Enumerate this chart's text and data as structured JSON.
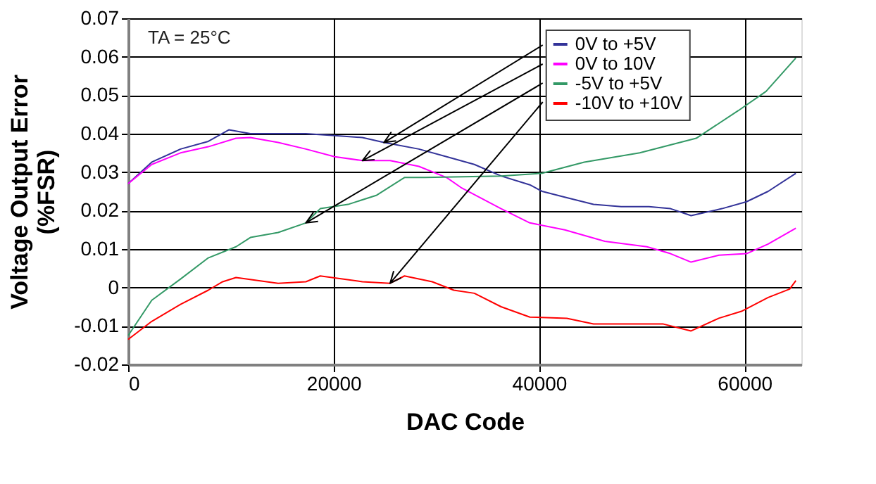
{
  "chart_data": {
    "type": "line",
    "xlabel": "DAC Code",
    "ylabel": "Voltage Output Error\n(%FSR)",
    "xlim": [
      0,
      65535
    ],
    "ylim": [
      -0.02,
      0.07
    ],
    "xticks": [
      0,
      20000,
      40000,
      60000
    ],
    "yticks": [
      -0.02,
      -0.01,
      0,
      0.01,
      0.02,
      0.03,
      0.04,
      0.05,
      0.06,
      0.07
    ],
    "grid": true,
    "legend": "top right",
    "marker": "none",
    "line_style": "solid",
    "annotations": [
      "TA = 25°C"
    ],
    "series": [
      {
        "name": "0V to +5V",
        "color": "#333399",
        "x": [
          0,
          2300,
          5100,
          7800,
          9800,
          11900,
          14600,
          17300,
          20100,
          22800,
          24900,
          28300,
          31000,
          33700,
          36300,
          39100,
          40300,
          42500,
          45300,
          48000,
          50700,
          52800,
          54800,
          57800,
          60200,
          62300,
          65000
        ],
        "values": [
          0.027,
          0.0326,
          0.036,
          0.038,
          0.041,
          0.04,
          0.04,
          0.04,
          0.0395,
          0.039,
          0.0377,
          0.036,
          0.034,
          0.032,
          0.029,
          0.0267,
          0.025,
          0.0235,
          0.0216,
          0.021,
          0.021,
          0.0205,
          0.0187,
          0.0205,
          0.0223,
          0.025,
          0.0297
        ]
      },
      {
        "name": "0V to 10V",
        "color": "#ff00ff",
        "x": [
          0,
          2300,
          5100,
          7800,
          10500,
          11900,
          14600,
          17300,
          20100,
          22800,
          25500,
          28300,
          31000,
          32400,
          36300,
          39100,
          42500,
          46400,
          50500,
          52800,
          54800,
          57500,
          60200,
          62300,
          65000
        ],
        "values": [
          0.027,
          0.032,
          0.035,
          0.0366,
          0.0388,
          0.039,
          0.0377,
          0.036,
          0.034,
          0.033,
          0.033,
          0.0315,
          0.0286,
          0.026,
          0.0205,
          0.0168,
          0.015,
          0.012,
          0.0106,
          0.0088,
          0.0066,
          0.0084,
          0.0088,
          0.0113,
          0.0154
        ]
      },
      {
        "name": "-5V to +5V",
        "color": "#339966",
        "x": [
          0,
          2300,
          5100,
          7800,
          10500,
          11900,
          14600,
          17300,
          18700,
          21400,
          24200,
          26900,
          28900,
          36300,
          40300,
          44400,
          49800,
          55300,
          59400,
          62100,
          65000
        ],
        "values": [
          -0.0125,
          -0.0033,
          0.0022,
          0.0077,
          0.0106,
          0.013,
          0.0143,
          0.0168,
          0.0205,
          0.0216,
          0.024,
          0.0286,
          0.0286,
          0.029,
          0.0297,
          0.0326,
          0.035,
          0.0388,
          0.046,
          0.051,
          0.0597
        ]
      },
      {
        "name": "-10V to +10V",
        "color": "#ff0000",
        "x": [
          0,
          2300,
          5100,
          7800,
          9200,
          10500,
          14600,
          17300,
          18700,
          22800,
          25500,
          26900,
          29600,
          31700,
          33700,
          36300,
          39100,
          42700,
          45300,
          49400,
          52100,
          54800,
          57500,
          59700,
          62300,
          64400,
          65000
        ],
        "values": [
          -0.0135,
          -0.0088,
          -0.0044,
          -0.0007,
          0.0015,
          0.0026,
          0.0011,
          0.0015,
          0.003,
          0.0015,
          0.0011,
          0.003,
          0.0015,
          -0.0007,
          -0.0015,
          -0.005,
          -0.0077,
          -0.008,
          -0.0095,
          -0.0095,
          -0.0095,
          -0.0113,
          -0.008,
          -0.0062,
          -0.0026,
          -0.0004,
          0.0018
        ]
      }
    ]
  }
}
